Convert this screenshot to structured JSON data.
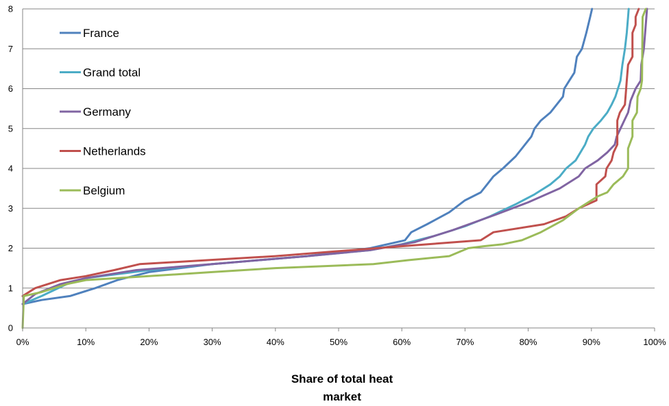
{
  "chart_data": {
    "type": "line",
    "title": "",
    "xlabel_lines": [
      "Share of total heat",
      "market"
    ],
    "ylabel": "",
    "xlim": [
      0,
      100
    ],
    "ylim": [
      0,
      8
    ],
    "x_ticks": [
      0,
      10,
      20,
      30,
      40,
      50,
      60,
      70,
      80,
      90,
      100
    ],
    "x_tick_labels": [
      "0%",
      "10%",
      "20%",
      "30%",
      "40%",
      "50%",
      "60%",
      "70%",
      "80%",
      "90%",
      "100%"
    ],
    "y_ticks": [
      0,
      1,
      2,
      3,
      4,
      5,
      6,
      7,
      8
    ],
    "y_tick_labels": [
      "0",
      "1",
      "2",
      "3",
      "4",
      "5",
      "6",
      "7",
      "8"
    ],
    "grid": "horizontal",
    "legend_position": "top-left",
    "series": [
      {
        "name": "France",
        "color": "#4F81BD",
        "points": [
          [
            0,
            0.6
          ],
          [
            3,
            0.7
          ],
          [
            7.5,
            0.8
          ],
          [
            11.5,
            1.0
          ],
          [
            15,
            1.2
          ],
          [
            20,
            1.4
          ],
          [
            30,
            1.6
          ],
          [
            45,
            1.8
          ],
          [
            55,
            2.0
          ],
          [
            60.5,
            2.2
          ],
          [
            61.5,
            2.4
          ],
          [
            64,
            2.6
          ],
          [
            67.5,
            2.9
          ],
          [
            70,
            3.2
          ],
          [
            72.5,
            3.4
          ],
          [
            73.5,
            3.6
          ],
          [
            74.5,
            3.8
          ],
          [
            76,
            4.0
          ],
          [
            78,
            4.3
          ],
          [
            79.5,
            4.6
          ],
          [
            80.5,
            4.8
          ],
          [
            81,
            5.0
          ],
          [
            82,
            5.2
          ],
          [
            83.5,
            5.4
          ],
          [
            84.5,
            5.6
          ],
          [
            85.5,
            5.8
          ],
          [
            85.7,
            6.0
          ],
          [
            86.5,
            6.2
          ],
          [
            87.3,
            6.4
          ],
          [
            87.7,
            6.8
          ],
          [
            88.5,
            7.0
          ],
          [
            89.2,
            7.4
          ],
          [
            89.8,
            7.8
          ],
          [
            90.1,
            8.0
          ]
        ]
      },
      {
        "name": "Grand total",
        "color": "#4BACC6",
        "points": [
          [
            0,
            0.6
          ],
          [
            3,
            0.8
          ],
          [
            7,
            1.1
          ],
          [
            10,
            1.25
          ],
          [
            15,
            1.35
          ],
          [
            20,
            1.45
          ],
          [
            30,
            1.6
          ],
          [
            45,
            1.8
          ],
          [
            55,
            1.95
          ],
          [
            60,
            2.1
          ],
          [
            65,
            2.3
          ],
          [
            70,
            2.55
          ],
          [
            74,
            2.8
          ],
          [
            78,
            3.1
          ],
          [
            81,
            3.35
          ],
          [
            83.5,
            3.6
          ],
          [
            85,
            3.8
          ],
          [
            86,
            4.0
          ],
          [
            87.5,
            4.2
          ],
          [
            89,
            4.6
          ],
          [
            89.5,
            4.8
          ],
          [
            90.3,
            5.0
          ],
          [
            91.5,
            5.2
          ],
          [
            92.5,
            5.4
          ],
          [
            93.2,
            5.6
          ],
          [
            93.8,
            5.8
          ],
          [
            94.2,
            6.0
          ],
          [
            94.6,
            6.2
          ],
          [
            94.9,
            6.6
          ],
          [
            95.3,
            7.0
          ],
          [
            95.6,
            7.4
          ],
          [
            95.8,
            7.8
          ],
          [
            95.9,
            8.0
          ]
        ]
      },
      {
        "name": "Germany",
        "color": "#8064A2",
        "points": [
          [
            0,
            0.6
          ],
          [
            2,
            0.85
          ],
          [
            6,
            1.1
          ],
          [
            10,
            1.25
          ],
          [
            18,
            1.45
          ],
          [
            30,
            1.6
          ],
          [
            45,
            1.8
          ],
          [
            55,
            1.95
          ],
          [
            62,
            2.15
          ],
          [
            68,
            2.45
          ],
          [
            75,
            2.85
          ],
          [
            80,
            3.15
          ],
          [
            85,
            3.5
          ],
          [
            88,
            3.8
          ],
          [
            89,
            4.0
          ],
          [
            91,
            4.2
          ],
          [
            92.5,
            4.4
          ],
          [
            93.7,
            4.6
          ],
          [
            94,
            4.8
          ],
          [
            94.6,
            5.0
          ],
          [
            95.2,
            5.2
          ],
          [
            95.8,
            5.4
          ],
          [
            96.2,
            5.7
          ],
          [
            97,
            6.0
          ],
          [
            97.8,
            6.2
          ],
          [
            97.9,
            6.6
          ],
          [
            98.3,
            7.0
          ],
          [
            98.5,
            7.4
          ],
          [
            98.7,
            7.8
          ],
          [
            98.8,
            8.0
          ]
        ]
      },
      {
        "name": "Netherlands",
        "color": "#C0504D",
        "points": [
          [
            0,
            0.8
          ],
          [
            2,
            1.0
          ],
          [
            6,
            1.2
          ],
          [
            10,
            1.3
          ],
          [
            14.5,
            1.45
          ],
          [
            18.5,
            1.6
          ],
          [
            40,
            1.8
          ],
          [
            60,
            2.05
          ],
          [
            72.5,
            2.2
          ],
          [
            74.5,
            2.4
          ],
          [
            82.5,
            2.6
          ],
          [
            86,
            2.8
          ],
          [
            88,
            3.0
          ],
          [
            90.8,
            3.2
          ],
          [
            90.8,
            3.6
          ],
          [
            92.2,
            3.8
          ],
          [
            92.4,
            4.0
          ],
          [
            93.2,
            4.2
          ],
          [
            93.5,
            4.4
          ],
          [
            94.1,
            4.6
          ],
          [
            94.1,
            5.2
          ],
          [
            94.5,
            5.4
          ],
          [
            95.3,
            5.6
          ],
          [
            95.5,
            6.0
          ],
          [
            95.6,
            6.2
          ],
          [
            95.8,
            6.6
          ],
          [
            96.5,
            6.8
          ],
          [
            96.5,
            7.4
          ],
          [
            97,
            7.6
          ],
          [
            97,
            7.8
          ],
          [
            97.5,
            8.0
          ]
        ]
      },
      {
        "name": "Belgium",
        "color": "#9BBB59",
        "points": [
          [
            0,
            0.0
          ],
          [
            0.2,
            0.8
          ],
          [
            3,
            0.9
          ],
          [
            7,
            1.1
          ],
          [
            10,
            1.2
          ],
          [
            20,
            1.3
          ],
          [
            30,
            1.4
          ],
          [
            40,
            1.5
          ],
          [
            55.5,
            1.6
          ],
          [
            61,
            1.7
          ],
          [
            67.5,
            1.8
          ],
          [
            70.5,
            2.0
          ],
          [
            73,
            2.05
          ],
          [
            76,
            2.1
          ],
          [
            79,
            2.2
          ],
          [
            82,
            2.4
          ],
          [
            85.5,
            2.7
          ],
          [
            88,
            3.0
          ],
          [
            91,
            3.3
          ],
          [
            92.5,
            3.4
          ],
          [
            93.5,
            3.6
          ],
          [
            95,
            3.8
          ],
          [
            95.8,
            4.0
          ],
          [
            95.8,
            4.5
          ],
          [
            96.5,
            4.8
          ],
          [
            96.5,
            5.2
          ],
          [
            97.2,
            5.4
          ],
          [
            97.3,
            5.8
          ],
          [
            97.8,
            6.0
          ],
          [
            98,
            6.2
          ],
          [
            98.1,
            7.8
          ],
          [
            98.6,
            8.0
          ]
        ]
      }
    ]
  }
}
